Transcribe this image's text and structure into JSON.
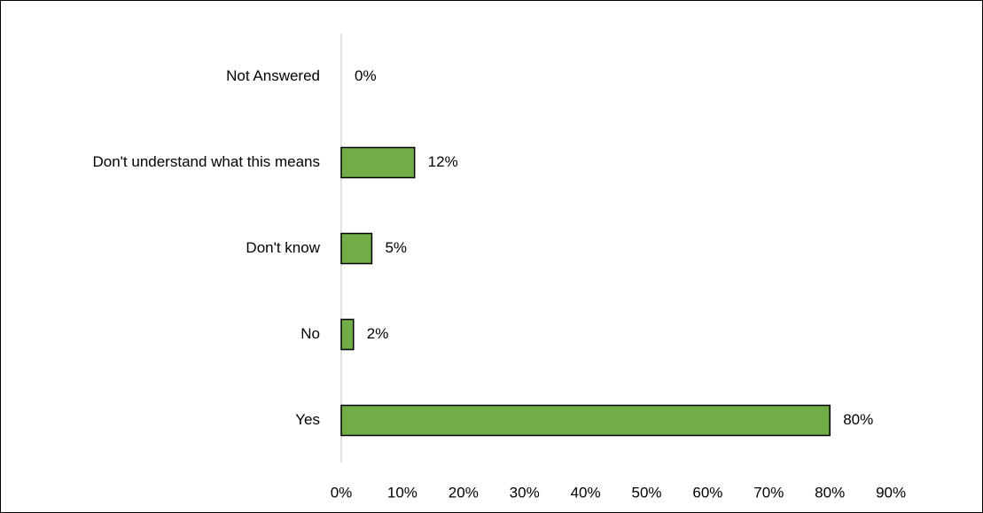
{
  "chart_data": {
    "type": "bar",
    "orientation": "horizontal",
    "categories": [
      "Not Answered",
      "Don't understand what this means",
      "Don't know",
      "No",
      "Yes"
    ],
    "values": [
      0,
      12,
      5,
      2,
      80
    ],
    "value_labels": [
      "0%",
      "12%",
      "5%",
      "2%",
      "80%"
    ],
    "x_ticks": [
      "0%",
      "10%",
      "20%",
      "30%",
      "40%",
      "50%",
      "60%",
      "70%",
      "80%",
      "90%"
    ],
    "xlim": [
      0,
      90
    ],
    "title": "",
    "xlabel": "",
    "ylabel": "",
    "grid": false,
    "legend": "none"
  },
  "colors": {
    "bar_fill": "#70ad47",
    "bar_stroke": "#000000",
    "axis": "#d9d9d9"
  }
}
